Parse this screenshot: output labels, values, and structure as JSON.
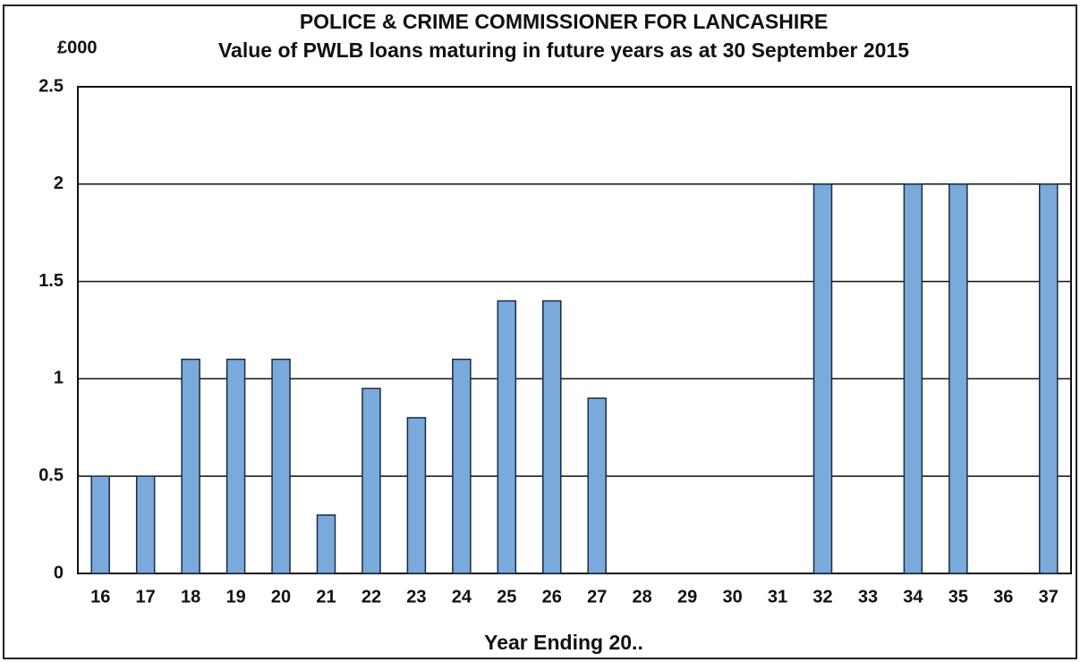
{
  "chart_data": {
    "type": "bar",
    "title": "POLICE & CRIME COMMISSIONER FOR LANCASHIRE",
    "subtitle": "Value of PWLB loans maturing in future years as at 30 September 2015",
    "y_label": "£000",
    "x_label": "Year Ending 20..",
    "categories": [
      "16",
      "17",
      "18",
      "19",
      "20",
      "21",
      "22",
      "23",
      "24",
      "25",
      "26",
      "27",
      "28",
      "29",
      "30",
      "31",
      "32",
      "33",
      "34",
      "35",
      "36",
      "37"
    ],
    "values": [
      0.5,
      0.5,
      1.1,
      1.1,
      1.1,
      0.3,
      0.95,
      0.8,
      1.1,
      1.4,
      1.4,
      0.9,
      0,
      0,
      0,
      0,
      2,
      0,
      2,
      2,
      0,
      2
    ],
    "color": "#79aadb",
    "ylim": [
      0,
      2.5
    ],
    "yticks": [
      0,
      0.5,
      1,
      1.5,
      2,
      2.5
    ],
    "grid": true
  }
}
